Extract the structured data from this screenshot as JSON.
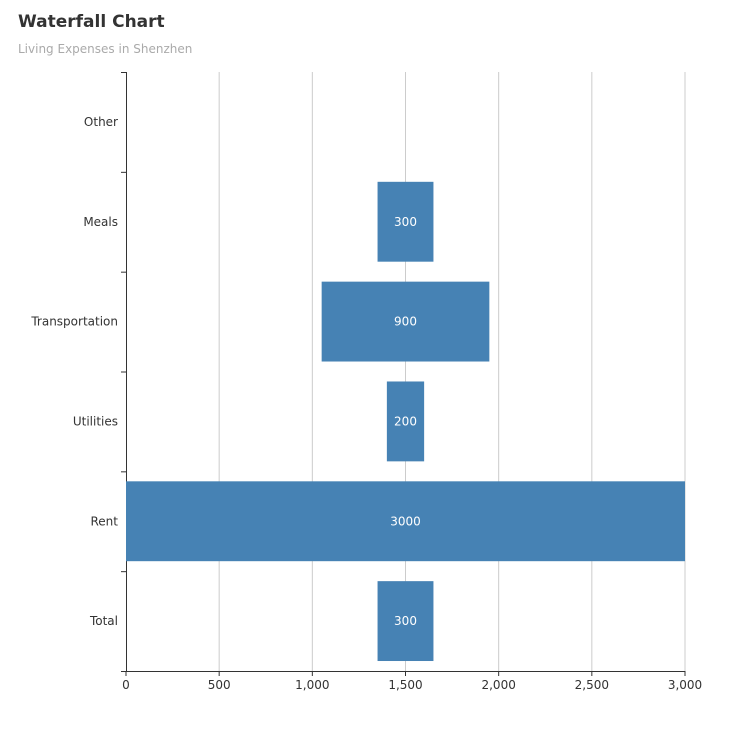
{
  "chart_data": {
    "type": "bar",
    "orientation": "horizontal",
    "title": "Waterfall Chart",
    "subtitle": "Living Expenses in Shenzhen",
    "categories": [
      "Total",
      "Rent",
      "Utilities",
      "Transportation",
      "Meals",
      "Other"
    ],
    "values": [
      300,
      3000,
      200,
      900,
      300,
      null
    ],
    "labels": [
      "300",
      "3000",
      "200",
      "900",
      "300",
      ""
    ],
    "xlim": [
      0,
      3000
    ],
    "xticks": [
      0,
      500,
      1000,
      1500,
      2000,
      2500,
      3000
    ],
    "xtick_labels": [
      "0",
      "500",
      "1,000",
      "1,500",
      "2,000",
      "2,500",
      "3,000"
    ],
    "xlabel": "",
    "ylabel": "",
    "grid": "vertical",
    "bar_color": "#4682b4",
    "grid_color": "#cccccc",
    "axis_color": "#333333"
  }
}
